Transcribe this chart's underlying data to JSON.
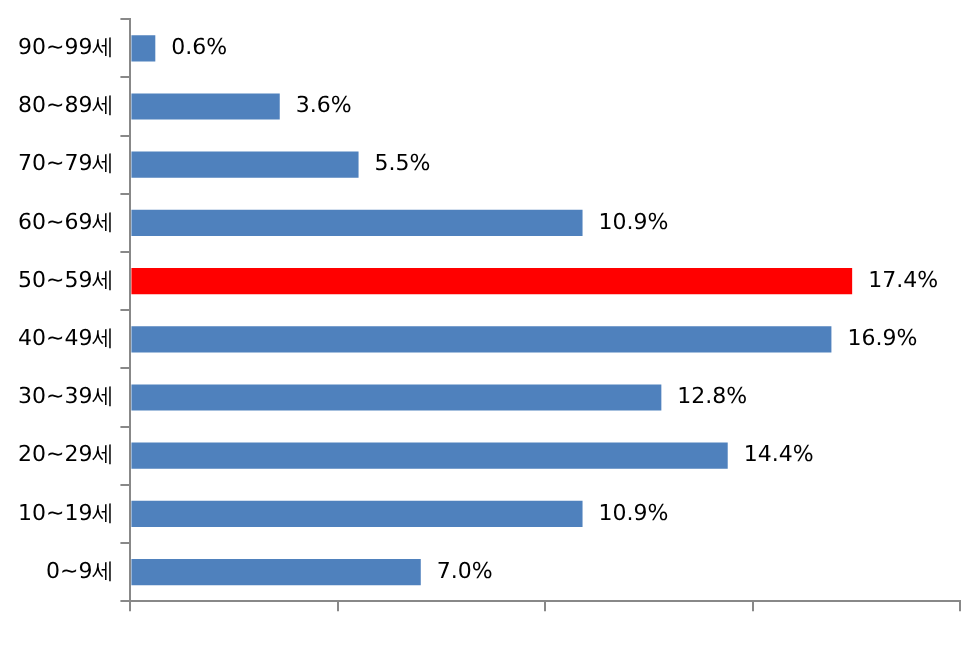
{
  "chart_data": {
    "type": "bar",
    "orientation": "horizontal",
    "categories": [
      "90~99세",
      "80~89세",
      "70~79세",
      "60~69세",
      "50~59세",
      "40~49세",
      "30~39세",
      "20~29세",
      "10~19세",
      "0~9세"
    ],
    "values": [
      0.6,
      3.6,
      5.5,
      10.9,
      17.4,
      16.9,
      12.8,
      14.4,
      10.9,
      7.0
    ],
    "value_labels": [
      "0.6%",
      "3.6%",
      "5.5%",
      "10.9%",
      "17.4%",
      "16.9%",
      "12.8%",
      "14.4%",
      "10.9%",
      "7.0%"
    ],
    "colors": [
      "#4f81bd",
      "#4f81bd",
      "#4f81bd",
      "#4f81bd",
      "#ff0000",
      "#4f81bd",
      "#4f81bd",
      "#4f81bd",
      "#4f81bd",
      "#4f81bd"
    ],
    "xlim": [
      0,
      20
    ],
    "xticks": [
      {
        "value": 0,
        "label": null
      },
      {
        "value": 5,
        "label": null
      },
      {
        "value": 10,
        "label": null
      },
      {
        "value": 15,
        "label": null
      },
      {
        "value": 20,
        "label": null
      }
    ],
    "tick_labels": "y",
    "grid": false,
    "legend": false
  }
}
